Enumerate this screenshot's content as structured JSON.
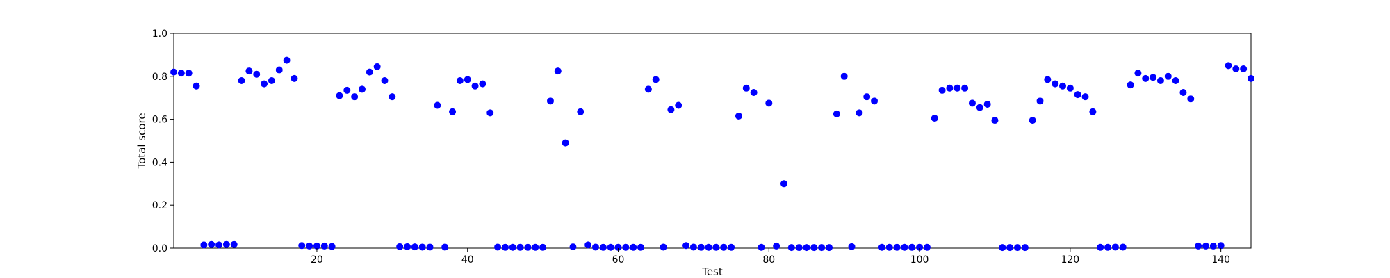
{
  "chart_data": {
    "type": "scatter",
    "title": "",
    "xlabel": "Test",
    "ylabel": "Total score",
    "xlim": [
      1,
      144
    ],
    "ylim": [
      0.0,
      1.0
    ],
    "grid": false,
    "marker_color": "#0000ff",
    "xticks": [
      {
        "value": 20,
        "label": "20"
      },
      {
        "value": 40,
        "label": "40"
      },
      {
        "value": 60,
        "label": "60"
      },
      {
        "value": 80,
        "label": "80"
      },
      {
        "value": 100,
        "label": "100"
      },
      {
        "value": 120,
        "label": "120"
      },
      {
        "value": 140,
        "label": "140"
      }
    ],
    "yticks": [
      {
        "value": 0.0,
        "label": "0.0"
      },
      {
        "value": 0.2,
        "label": "0.2"
      },
      {
        "value": 0.4,
        "label": "0.4"
      },
      {
        "value": 0.6,
        "label": "0.6"
      },
      {
        "value": 0.8,
        "label": "0.8"
      },
      {
        "value": 1.0,
        "label": "1.0"
      }
    ],
    "x": [
      1,
      2,
      3,
      4,
      5,
      6,
      7,
      8,
      9,
      10,
      11,
      12,
      13,
      14,
      15,
      16,
      17,
      18,
      19,
      20,
      21,
      22,
      23,
      24,
      25,
      26,
      27,
      28,
      29,
      30,
      31,
      32,
      33,
      34,
      35,
      36,
      37,
      38,
      39,
      40,
      41,
      42,
      43,
      44,
      45,
      46,
      47,
      48,
      49,
      50,
      51,
      52,
      53,
      54,
      55,
      56,
      57,
      58,
      59,
      60,
      61,
      62,
      63,
      64,
      65,
      66,
      67,
      68,
      69,
      70,
      71,
      72,
      73,
      74,
      75,
      76,
      77,
      78,
      79,
      80,
      81,
      82,
      83,
      84,
      85,
      86,
      87,
      88,
      89,
      90,
      91,
      92,
      93,
      94,
      95,
      96,
      97,
      98,
      99,
      100,
      101,
      102,
      103,
      104,
      105,
      106,
      107,
      108,
      109,
      110,
      111,
      112,
      113,
      114,
      115,
      116,
      117,
      118,
      119,
      120,
      121,
      122,
      123,
      124,
      125,
      126,
      127,
      128,
      129,
      130,
      131,
      132,
      133,
      134,
      135,
      136,
      137,
      138,
      139,
      140,
      141,
      142,
      143,
      144
    ],
    "y": [
      0.82,
      0.815,
      0.815,
      0.755,
      0.015,
      0.017,
      0.015,
      0.017,
      0.017,
      0.78,
      0.825,
      0.81,
      0.765,
      0.78,
      0.83,
      0.875,
      0.79,
      0.012,
      0.01,
      0.01,
      0.01,
      0.008,
      0.71,
      0.735,
      0.705,
      0.74,
      0.82,
      0.845,
      0.78,
      0.705,
      0.007,
      0.007,
      0.006,
      0.005,
      0.005,
      0.665,
      0.005,
      0.635,
      0.78,
      0.785,
      0.755,
      0.765,
      0.63,
      0.005,
      0.004,
      0.004,
      0.004,
      0.004,
      0.004,
      0.004,
      0.685,
      0.825,
      0.49,
      0.006,
      0.635,
      0.015,
      0.005,
      0.004,
      0.004,
      0.004,
      0.004,
      0.004,
      0.004,
      0.74,
      0.785,
      0.005,
      0.645,
      0.665,
      0.012,
      0.005,
      0.004,
      0.004,
      0.004,
      0.004,
      0.004,
      0.615,
      0.745,
      0.725,
      0.004,
      0.675,
      0.01,
      0.3,
      0.003,
      0.003,
      0.003,
      0.003,
      0.003,
      0.003,
      0.625,
      0.8,
      0.007,
      0.63,
      0.705,
      0.685,
      0.004,
      0.004,
      0.004,
      0.004,
      0.004,
      0.004,
      0.004,
      0.605,
      0.735,
      0.745,
      0.745,
      0.745,
      0.675,
      0.655,
      0.67,
      0.595,
      0.003,
      0.003,
      0.003,
      0.003,
      0.595,
      0.685,
      0.785,
      0.765,
      0.755,
      0.745,
      0.715,
      0.705,
      0.635,
      0.004,
      0.004,
      0.005,
      0.005,
      0.76,
      0.815,
      0.79,
      0.795,
      0.78,
      0.8,
      0.78,
      0.725,
      0.695,
      0.01,
      0.01,
      0.01,
      0.012,
      0.85,
      0.835,
      0.835,
      0.79
    ]
  }
}
